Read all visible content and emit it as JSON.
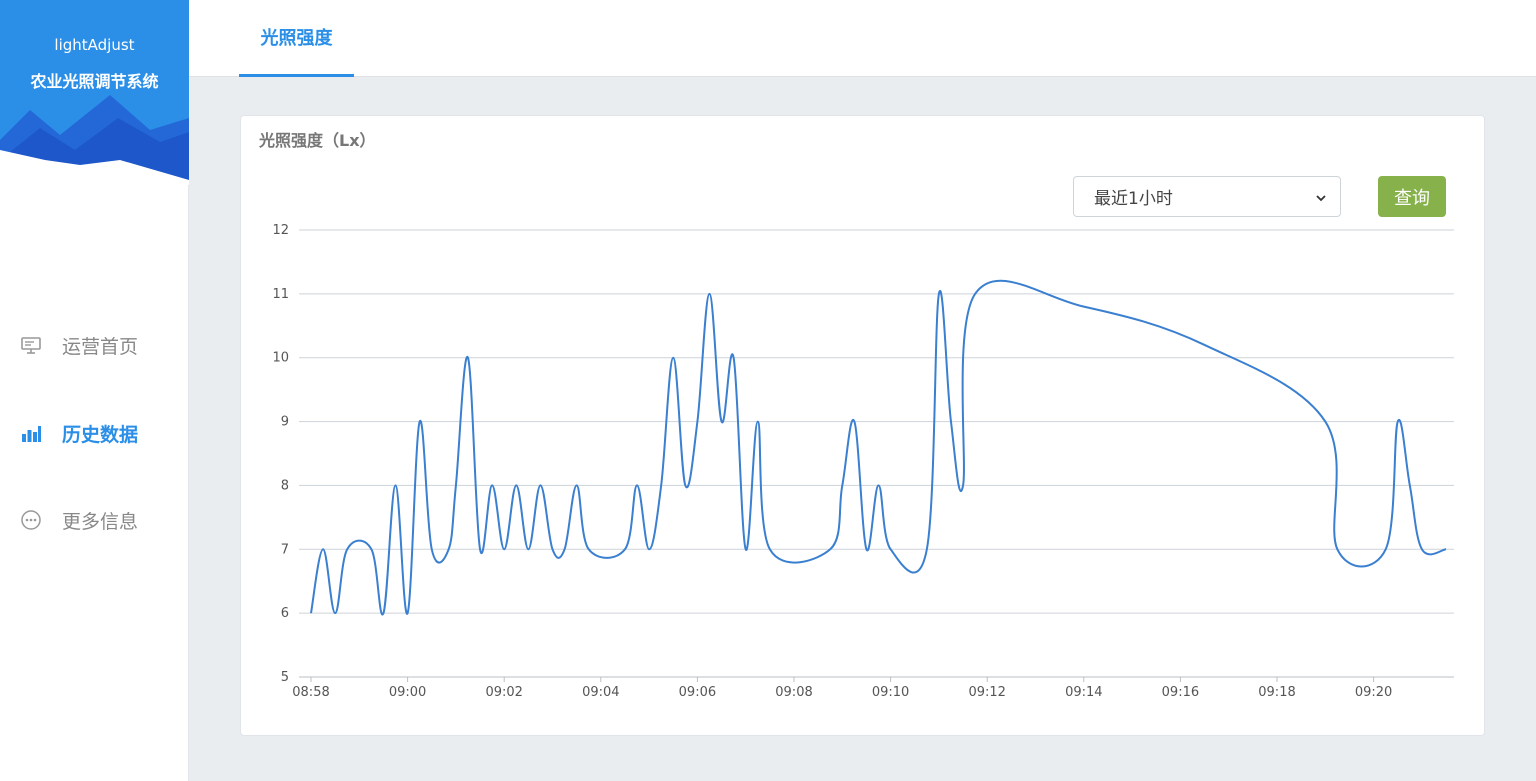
{
  "app": {
    "name": "lightAdjust",
    "title": "农业光照调节系统"
  },
  "sidebar": {
    "items": [
      {
        "label": "运营首页",
        "icon": "monitor-icon",
        "active": false
      },
      {
        "label": "历史数据",
        "icon": "bar-chart-icon",
        "active": true
      },
      {
        "label": "更多信息",
        "icon": "more-icon",
        "active": false
      }
    ]
  },
  "header": {
    "tab_label": "光照强度"
  },
  "card": {
    "title": "光照强度（Lx）",
    "range_select": {
      "value": "最近1小时"
    },
    "query_button": "查询"
  },
  "colors": {
    "accent": "#2b8fe8",
    "button": "#87b14b",
    "line": "#3a7fd0"
  },
  "chart_data": {
    "type": "line",
    "ylim": [
      5,
      12
    ],
    "yticks": [
      "5",
      "6",
      "7",
      "8",
      "9",
      "10",
      "11",
      "12"
    ],
    "xticks": [
      "08:58",
      "09:00",
      "09:02",
      "09:04",
      "09:06",
      "09:08",
      "09:10",
      "09:12",
      "09:14",
      "09:16",
      "09:18",
      "09:20"
    ],
    "grid": true,
    "series": [
      {
        "points": [
          [
            "08:58.0",
            6
          ],
          [
            "08:58.25",
            7
          ],
          [
            "08:58.5",
            6
          ],
          [
            "08:58.75",
            7
          ],
          [
            "08:59.25",
            7
          ],
          [
            "08:59.5",
            6
          ],
          [
            "08:59.75",
            8
          ],
          [
            "09:00.0",
            6
          ],
          [
            "09:00.25",
            9
          ],
          [
            "09:00.5",
            7
          ],
          [
            "09:00.85",
            7
          ],
          [
            "09:01.0",
            8
          ],
          [
            "09:01.25",
            10
          ],
          [
            "09:01.5",
            7
          ],
          [
            "09:01.75",
            8
          ],
          [
            "09:02.0",
            7
          ],
          [
            "09:02.25",
            8
          ],
          [
            "09:02.5",
            7
          ],
          [
            "09:02.75",
            8
          ],
          [
            "09:03.0",
            7
          ],
          [
            "09:03.25",
            7
          ],
          [
            "09:03.5",
            8
          ],
          [
            "09:03.75",
            7
          ],
          [
            "09:04.5",
            7
          ],
          [
            "09:04.75",
            8
          ],
          [
            "09:05.0",
            7
          ],
          [
            "09:05.25",
            8
          ],
          [
            "09:05.5",
            10
          ],
          [
            "09:05.75",
            8
          ],
          [
            "09:06.0",
            9
          ],
          [
            "09:06.25",
            11
          ],
          [
            "09:06.5",
            9
          ],
          [
            "09:06.75",
            10
          ],
          [
            "09:07.0",
            7
          ],
          [
            "09:07.25",
            9
          ],
          [
            "09:07.5",
            7
          ],
          [
            "09:08.75",
            7
          ],
          [
            "09:09.0",
            8
          ],
          [
            "09:09.25",
            9
          ],
          [
            "09:09.5",
            7
          ],
          [
            "09:09.75",
            8
          ],
          [
            "09:10.0",
            7
          ],
          [
            "09:10.75",
            7
          ],
          [
            "09:11.0",
            11
          ],
          [
            "09:11.25",
            9
          ],
          [
            "09:11.5",
            8
          ],
          [
            "09:11.75",
            11
          ],
          [
            "09:14.0",
            10.8
          ],
          [
            "09:16.5",
            10.2
          ],
          [
            "09:19.0",
            9
          ],
          [
            "09:19.25",
            7
          ],
          [
            "09:20.25",
            7
          ],
          [
            "09:20.5",
            9
          ],
          [
            "09:20.75",
            8
          ],
          [
            "09:21.0",
            7
          ],
          [
            "09:21.5",
            7
          ]
        ]
      }
    ]
  }
}
